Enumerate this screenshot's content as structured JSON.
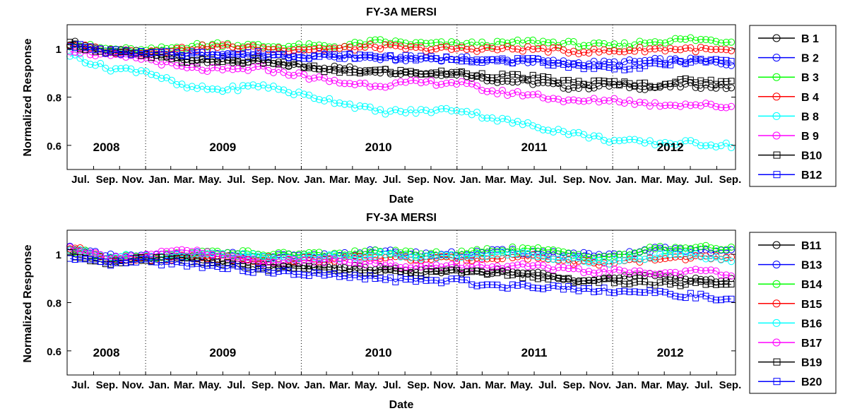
{
  "charts": [
    {
      "title": "FY-3A MERSI",
      "xlabel": "Date",
      "ylabel": "Normalized Response",
      "legend_labels": [
        "B 1",
        "B 2",
        "B 3",
        "B 4",
        "B 8",
        "B 9",
        "B10",
        "B12"
      ]
    },
    {
      "title": "FY-3A MERSI",
      "xlabel": "Date",
      "ylabel": "Normalized Response",
      "legend_labels": [
        "B11",
        "B13",
        "B14",
        "B15",
        "B16",
        "B17",
        "B19",
        "B20"
      ]
    }
  ],
  "chart_data": [
    {
      "type": "line",
      "title": "FY-3A MERSI",
      "xlabel": "Date",
      "ylabel": "Normalized Response",
      "x_tick_labels": [
        "Jul.",
        "Sep.",
        "Nov.",
        "Jan.",
        "Mar.",
        "May.",
        "Jul.",
        "Sep.",
        "Nov.",
        "Jan.",
        "Mar.",
        "May.",
        "Jul.",
        "Sep.",
        "Nov.",
        "Jan.",
        "Mar.",
        "May.",
        "Jul.",
        "Sep.",
        "Nov.",
        "Jan.",
        "Mar.",
        "May.",
        "Jul.",
        "Sep."
      ],
      "y_ticks": [
        0.6,
        0.8,
        1
      ],
      "ylim": [
        0.5,
        1.1
      ],
      "year_labels": [
        "2008",
        "2009",
        "2010",
        "2011",
        "2012"
      ],
      "legend_position": "outside-right",
      "series": [
        {
          "name": "B 1",
          "color": "#000000",
          "marker": "circle",
          "x": [
            "2008-07",
            "2008-10",
            "2009-01",
            "2009-04",
            "2009-07",
            "2009-10",
            "2010-01",
            "2010-04",
            "2010-07",
            "2010-10",
            "2011-01",
            "2011-04",
            "2011-07",
            "2011-10",
            "2012-01",
            "2012-04",
            "2012-07",
            "2012-10"
          ],
          "values": [
            1.03,
            0.99,
            0.98,
            0.96,
            0.95,
            0.94,
            0.93,
            0.92,
            0.91,
            0.9,
            0.9,
            0.87,
            0.86,
            0.84,
            0.85,
            0.84,
            0.85,
            0.84
          ]
        },
        {
          "name": "B 2",
          "color": "#0000ff",
          "marker": "circle",
          "x": [
            "2008-07",
            "2008-10",
            "2009-01",
            "2009-04",
            "2009-07",
            "2009-10",
            "2010-01",
            "2010-04",
            "2010-07",
            "2010-10",
            "2011-01",
            "2011-04",
            "2011-07",
            "2011-10",
            "2012-01",
            "2012-04",
            "2012-07",
            "2012-10"
          ],
          "values": [
            1.02,
            0.99,
            0.98,
            0.98,
            0.98,
            0.97,
            0.97,
            0.97,
            0.96,
            0.96,
            0.96,
            0.95,
            0.95,
            0.94,
            0.94,
            0.95,
            0.95,
            0.94
          ]
        },
        {
          "name": "B 3",
          "color": "#00ff00",
          "marker": "circle",
          "x": [
            "2008-07",
            "2008-10",
            "2009-01",
            "2009-04",
            "2009-07",
            "2009-10",
            "2010-01",
            "2010-04",
            "2010-07",
            "2010-10",
            "2011-01",
            "2011-04",
            "2011-07",
            "2011-10",
            "2012-01",
            "2012-04",
            "2012-07",
            "2012-10"
          ],
          "values": [
            1.02,
            1.0,
            0.99,
            1.01,
            1.02,
            1.01,
            1.01,
            1.01,
            1.03,
            1.02,
            1.02,
            1.02,
            1.03,
            1.02,
            1.01,
            1.03,
            1.04,
            1.03
          ]
        },
        {
          "name": "B 4",
          "color": "#ff0000",
          "marker": "circle",
          "x": [
            "2008-07",
            "2008-10",
            "2009-01",
            "2009-04",
            "2009-07",
            "2009-10",
            "2010-01",
            "2010-04",
            "2010-07",
            "2010-10",
            "2011-01",
            "2011-04",
            "2011-07",
            "2011-10",
            "2012-01",
            "2012-04",
            "2012-07",
            "2012-10"
          ],
          "values": [
            1.02,
            0.99,
            0.99,
            1.0,
            1.01,
            1.0,
            1.0,
            1.0,
            1.01,
            1.0,
            1.0,
            1.0,
            1.0,
            0.99,
            0.99,
            1.0,
            1.0,
            0.99
          ]
        },
        {
          "name": "B 8",
          "color": "#00ffff",
          "marker": "circle",
          "x": [
            "2008-07",
            "2008-10",
            "2009-01",
            "2009-04",
            "2009-07",
            "2009-10",
            "2010-01",
            "2010-04",
            "2010-07",
            "2010-10",
            "2011-01",
            "2011-04",
            "2011-07",
            "2011-10",
            "2012-01",
            "2012-04",
            "2012-07",
            "2012-10"
          ],
          "values": [
            0.98,
            0.92,
            0.91,
            0.84,
            0.83,
            0.85,
            0.81,
            0.78,
            0.74,
            0.74,
            0.75,
            0.71,
            0.68,
            0.65,
            0.62,
            0.61,
            0.61,
            0.6
          ]
        },
        {
          "name": "B 9",
          "color": "#ff00ff",
          "marker": "circle",
          "x": [
            "2008-07",
            "2008-10",
            "2009-01",
            "2009-04",
            "2009-07",
            "2009-10",
            "2010-01",
            "2010-04",
            "2010-07",
            "2010-10",
            "2011-01",
            "2011-04",
            "2011-07",
            "2011-10",
            "2012-01",
            "2012-04",
            "2012-07",
            "2012-10"
          ],
          "values": [
            1.0,
            0.97,
            0.96,
            0.92,
            0.91,
            0.92,
            0.89,
            0.86,
            0.85,
            0.86,
            0.86,
            0.82,
            0.81,
            0.78,
            0.79,
            0.77,
            0.77,
            0.76
          ]
        },
        {
          "name": "B10",
          "color": "#000000",
          "marker": "square",
          "x": [
            "2008-07",
            "2008-10",
            "2009-01",
            "2009-04",
            "2009-07",
            "2009-10",
            "2010-01",
            "2010-04",
            "2010-07",
            "2010-10",
            "2011-01",
            "2011-04",
            "2011-07",
            "2011-10",
            "2012-01",
            "2012-04",
            "2012-07",
            "2012-10"
          ],
          "values": [
            1.02,
            0.99,
            0.97,
            0.95,
            0.95,
            0.95,
            0.93,
            0.9,
            0.91,
            0.9,
            0.9,
            0.89,
            0.88,
            0.86,
            0.86,
            0.85,
            0.87,
            0.86
          ]
        },
        {
          "name": "B12",
          "color": "#0000ff",
          "marker": "square",
          "x": [
            "2008-07",
            "2008-10",
            "2009-01",
            "2009-04",
            "2009-07",
            "2009-10",
            "2010-01",
            "2010-04",
            "2010-07",
            "2010-10",
            "2011-01",
            "2011-04",
            "2011-07",
            "2011-10",
            "2012-01",
            "2012-04",
            "2012-07",
            "2012-10"
          ],
          "values": [
            1.02,
            0.99,
            0.98,
            0.98,
            0.98,
            0.98,
            0.97,
            0.97,
            0.97,
            0.96,
            0.96,
            0.95,
            0.95,
            0.93,
            0.92,
            0.93,
            0.95,
            0.95
          ]
        }
      ]
    },
    {
      "type": "line",
      "title": "FY-3A MERSI",
      "xlabel": "Date",
      "ylabel": "Normalized Response",
      "x_tick_labels": [
        "Jul.",
        "Sep.",
        "Nov.",
        "Jan.",
        "Mar.",
        "May.",
        "Jul.",
        "Sep.",
        "Nov.",
        "Jan.",
        "Mar.",
        "May.",
        "Jul.",
        "Sep.",
        "Nov.",
        "Jan.",
        "Mar.",
        "May.",
        "Jul.",
        "Sep.",
        "Nov.",
        "Jan.",
        "Mar.",
        "May.",
        "Jul.",
        "Sep."
      ],
      "y_ticks": [
        0.6,
        0.8,
        1
      ],
      "ylim": [
        0.5,
        1.1
      ],
      "year_labels": [
        "2008",
        "2009",
        "2010",
        "2011",
        "2012"
      ],
      "legend_position": "outside-right",
      "series": [
        {
          "name": "B11",
          "color": "#000000",
          "marker": "circle",
          "x": [
            "2008-07",
            "2008-10",
            "2009-01",
            "2009-04",
            "2009-07",
            "2009-10",
            "2010-01",
            "2010-04",
            "2010-07",
            "2010-10",
            "2011-01",
            "2011-04",
            "2011-07",
            "2011-10",
            "2012-01",
            "2012-04",
            "2012-07",
            "2012-10"
          ],
          "values": [
            1.02,
            0.98,
            0.98,
            0.99,
            0.97,
            0.96,
            0.95,
            0.95,
            0.94,
            0.93,
            0.93,
            0.93,
            0.92,
            0.9,
            0.9,
            0.91,
            0.9,
            0.89
          ]
        },
        {
          "name": "B13",
          "color": "#0000ff",
          "marker": "circle",
          "x": [
            "2008-07",
            "2008-10",
            "2009-01",
            "2009-04",
            "2009-07",
            "2009-10",
            "2010-01",
            "2010-04",
            "2010-07",
            "2010-10",
            "2011-01",
            "2011-04",
            "2011-07",
            "2011-10",
            "2012-01",
            "2012-04",
            "2012-07",
            "2012-10"
          ],
          "values": [
            1.03,
            0.99,
            0.99,
            1.0,
            1.0,
            0.99,
            0.99,
            1.0,
            1.01,
            1.0,
            1.0,
            1.01,
            1.01,
            1.0,
            0.99,
            1.02,
            1.02,
            1.01
          ]
        },
        {
          "name": "B14",
          "color": "#00ff00",
          "marker": "circle",
          "x": [
            "2008-07",
            "2008-10",
            "2009-01",
            "2009-04",
            "2009-07",
            "2009-10",
            "2010-01",
            "2010-04",
            "2010-07",
            "2010-10",
            "2011-01",
            "2011-04",
            "2011-07",
            "2011-10",
            "2012-01",
            "2012-04",
            "2012-07",
            "2012-10"
          ],
          "values": [
            1.02,
            0.99,
            0.99,
            1.0,
            1.01,
            1.0,
            1.0,
            1.0,
            1.01,
            1.0,
            1.0,
            1.02,
            1.02,
            1.0,
            0.99,
            1.02,
            1.03,
            1.02
          ]
        },
        {
          "name": "B15",
          "color": "#ff0000",
          "marker": "circle",
          "x": [
            "2008-07",
            "2008-10",
            "2009-01",
            "2009-04",
            "2009-07",
            "2009-10",
            "2010-01",
            "2010-04",
            "2010-07",
            "2010-10",
            "2011-01",
            "2011-04",
            "2011-07",
            "2011-10",
            "2012-01",
            "2012-04",
            "2012-07",
            "2012-10"
          ],
          "values": [
            1.03,
            0.99,
            0.98,
            0.99,
            0.99,
            0.98,
            0.98,
            0.98,
            0.99,
            0.98,
            0.98,
            0.99,
            0.99,
            0.97,
            0.96,
            0.98,
            0.99,
            0.98
          ]
        },
        {
          "name": "B16",
          "color": "#00ffff",
          "marker": "circle",
          "x": [
            "2008-07",
            "2008-10",
            "2009-01",
            "2009-04",
            "2009-07",
            "2009-10",
            "2010-01",
            "2010-04",
            "2010-07",
            "2010-10",
            "2011-01",
            "2011-04",
            "2011-07",
            "2011-10",
            "2012-01",
            "2012-04",
            "2012-07",
            "2012-10"
          ],
          "values": [
            1.02,
            0.99,
            0.99,
            1.0,
            1.0,
            0.99,
            0.99,
            0.99,
            1.0,
            0.99,
            0.99,
            1.0,
            1.0,
            0.98,
            0.97,
            0.99,
            1.0,
            0.98
          ]
        },
        {
          "name": "B17",
          "color": "#ff00ff",
          "marker": "circle",
          "x": [
            "2008-07",
            "2008-10",
            "2009-01",
            "2009-04",
            "2009-07",
            "2009-10",
            "2010-01",
            "2010-04",
            "2010-07",
            "2010-10",
            "2011-01",
            "2011-04",
            "2011-07",
            "2011-10",
            "2012-01",
            "2012-04",
            "2012-07",
            "2012-10"
          ],
          "values": [
            1.03,
            0.99,
            0.99,
            1.02,
            0.99,
            0.97,
            0.97,
            0.98,
            0.96,
            0.95,
            0.95,
            0.95,
            0.95,
            0.93,
            0.93,
            0.92,
            0.93,
            0.92
          ]
        },
        {
          "name": "B19",
          "color": "#000000",
          "marker": "square",
          "x": [
            "2008-07",
            "2008-10",
            "2009-01",
            "2009-04",
            "2009-07",
            "2009-10",
            "2010-01",
            "2010-04",
            "2010-07",
            "2010-10",
            "2011-01",
            "2011-04",
            "2011-07",
            "2011-10",
            "2012-01",
            "2012-04",
            "2012-07",
            "2012-10"
          ],
          "values": [
            1.0,
            0.96,
            0.98,
            0.98,
            0.96,
            0.94,
            0.95,
            0.93,
            0.93,
            0.92,
            0.93,
            0.92,
            0.91,
            0.89,
            0.89,
            0.88,
            0.88,
            0.87
          ]
        },
        {
          "name": "B20",
          "color": "#0000ff",
          "marker": "square",
          "x": [
            "2008-07",
            "2008-10",
            "2009-01",
            "2009-04",
            "2009-07",
            "2009-10",
            "2010-01",
            "2010-04",
            "2010-07",
            "2010-10",
            "2011-01",
            "2011-04",
            "2011-07",
            "2011-10",
            "2012-01",
            "2012-04",
            "2012-07",
            "2012-10"
          ],
          "values": [
            0.98,
            0.96,
            0.97,
            0.96,
            0.95,
            0.93,
            0.92,
            0.91,
            0.9,
            0.89,
            0.89,
            0.87,
            0.87,
            0.86,
            0.85,
            0.84,
            0.83,
            0.81
          ]
        }
      ]
    }
  ]
}
